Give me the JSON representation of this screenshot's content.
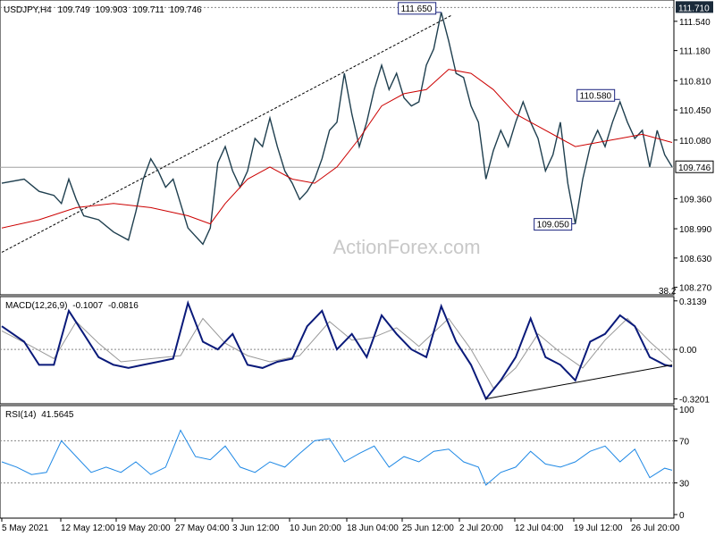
{
  "chart_data": {
    "type": "line",
    "symbol": "USDJPY",
    "timeframe": "H4",
    "ohlc_values": [
      "109.749",
      "109.903",
      "109.711",
      "109.746"
    ],
    "watermark": "ActionForex.com",
    "x_labels": [
      "5 May 2021",
      "12 May 12:00",
      "19 May 20:00",
      "27 May 04:00",
      "3 Jun 12:00",
      "10 Jun 20:00",
      "18 Jun 04:00",
      "25 Jun 12:00",
      "2 Jul 20:00",
      "12 Jul 04:00",
      "19 Jul 12:00",
      "26 Jul 20:00"
    ],
    "price_panel": {
      "ylim": [
        108.2,
        111.78
      ],
      "ticks": [
        "111.540",
        "111.180",
        "110.810",
        "110.450",
        "110.080",
        "109.360",
        "108.990",
        "108.630",
        "108.270"
      ],
      "current_price": 109.746,
      "current_label": "109.746",
      "top_marker": 111.71,
      "top_marker_label": "111.710",
      "small_label": "38.2",
      "price_line": [
        [
          0,
          109.55
        ],
        [
          6,
          109.6
        ],
        [
          10,
          109.45
        ],
        [
          14,
          109.4
        ],
        [
          16,
          109.3
        ],
        [
          18,
          109.6
        ],
        [
          20,
          109.35
        ],
        [
          22,
          109.15
        ],
        [
          26,
          109.1
        ],
        [
          30,
          108.95
        ],
        [
          34,
          108.85
        ],
        [
          36,
          109.2
        ],
        [
          38,
          109.6
        ],
        [
          40,
          109.85
        ],
        [
          42,
          109.7
        ],
        [
          44,
          109.5
        ],
        [
          46,
          109.6
        ],
        [
          48,
          109.3
        ],
        [
          50,
          109.0
        ],
        [
          54,
          108.8
        ],
        [
          56,
          109.0
        ],
        [
          58,
          109.8
        ],
        [
          60,
          110.0
        ],
        [
          62,
          109.7
        ],
        [
          64,
          109.5
        ],
        [
          66,
          109.7
        ],
        [
          68,
          110.1
        ],
        [
          70,
          110.0
        ],
        [
          72,
          110.35
        ],
        [
          74,
          110.0
        ],
        [
          76,
          109.7
        ],
        [
          78,
          109.55
        ],
        [
          80,
          109.35
        ],
        [
          82,
          109.45
        ],
        [
          84,
          109.6
        ],
        [
          86,
          109.85
        ],
        [
          88,
          110.2
        ],
        [
          90,
          110.3
        ],
        [
          92,
          110.9
        ],
        [
          94,
          110.4
        ],
        [
          96,
          110.0
        ],
        [
          98,
          110.3
        ],
        [
          100,
          110.7
        ],
        [
          102,
          111.0
        ],
        [
          104,
          110.7
        ],
        [
          106,
          110.9
        ],
        [
          108,
          110.6
        ],
        [
          110,
          110.5
        ],
        [
          112,
          110.55
        ],
        [
          114,
          111.0
        ],
        [
          116,
          111.2
        ],
        [
          118,
          111.65
        ],
        [
          120,
          111.3
        ],
        [
          122,
          110.9
        ],
        [
          124,
          110.85
        ],
        [
          126,
          110.5
        ],
        [
          128,
          110.3
        ],
        [
          130,
          109.6
        ],
        [
          132,
          109.95
        ],
        [
          134,
          110.2
        ],
        [
          136,
          110.0
        ],
        [
          138,
          110.3
        ],
        [
          140,
          110.55
        ],
        [
          142,
          110.3
        ],
        [
          144,
          110.1
        ],
        [
          146,
          109.7
        ],
        [
          148,
          109.9
        ],
        [
          150,
          110.3
        ],
        [
          152,
          109.55
        ],
        [
          154,
          109.05
        ],
        [
          156,
          109.6
        ],
        [
          158,
          110.0
        ],
        [
          160,
          110.2
        ],
        [
          162,
          110.0
        ],
        [
          164,
          110.3
        ],
        [
          166,
          110.55
        ],
        [
          168,
          110.3
        ],
        [
          170,
          110.1
        ],
        [
          172,
          110.2
        ],
        [
          174,
          109.75
        ],
        [
          176,
          110.2
        ],
        [
          178,
          109.9
        ],
        [
          180,
          109.75
        ]
      ],
      "ma_line": [
        [
          0,
          109.0
        ],
        [
          10,
          109.1
        ],
        [
          20,
          109.25
        ],
        [
          30,
          109.3
        ],
        [
          40,
          109.25
        ],
        [
          50,
          109.15
        ],
        [
          56,
          109.05
        ],
        [
          60,
          109.3
        ],
        [
          66,
          109.6
        ],
        [
          72,
          109.75
        ],
        [
          78,
          109.6
        ],
        [
          84,
          109.55
        ],
        [
          90,
          109.75
        ],
        [
          96,
          110.1
        ],
        [
          102,
          110.5
        ],
        [
          108,
          110.65
        ],
        [
          114,
          110.7
        ],
        [
          120,
          110.95
        ],
        [
          126,
          110.9
        ],
        [
          132,
          110.7
        ],
        [
          138,
          110.4
        ],
        [
          144,
          110.25
        ],
        [
          150,
          110.1
        ],
        [
          154,
          110.0
        ],
        [
          160,
          110.05
        ],
        [
          166,
          110.1
        ],
        [
          172,
          110.15
        ],
        [
          180,
          110.05
        ]
      ],
      "trendline": [
        [
          0,
          108.7
        ],
        [
          121,
          111.62
        ]
      ],
      "annotations": [
        {
          "text": "111.650",
          "x": 118,
          "y": 111.65
        },
        {
          "text": "110.580",
          "x": 166,
          "y": 110.58
        },
        {
          "text": "109.050",
          "x": 154,
          "y": 109.05
        }
      ]
    },
    "macd_panel": {
      "label": "MACD(12,26,9)",
      "values": [
        "-0.1007",
        "-0.0816"
      ],
      "ylim": [
        -0.34,
        0.33
      ],
      "ticks": [
        "0.3139",
        "0.00",
        "-0.3201"
      ],
      "tick_values": [
        0.3139,
        0.0,
        -0.3201
      ],
      "macd": [
        [
          0,
          0.15
        ],
        [
          6,
          0.05
        ],
        [
          10,
          -0.1
        ],
        [
          14,
          -0.1
        ],
        [
          18,
          0.25
        ],
        [
          22,
          0.1
        ],
        [
          26,
          -0.05
        ],
        [
          30,
          -0.1
        ],
        [
          34,
          -0.12
        ],
        [
          38,
          -0.1
        ],
        [
          42,
          -0.08
        ],
        [
          46,
          -0.06
        ],
        [
          50,
          0.3
        ],
        [
          54,
          0.05
        ],
        [
          58,
          0.0
        ],
        [
          62,
          0.1
        ],
        [
          66,
          -0.1
        ],
        [
          70,
          -0.12
        ],
        [
          74,
          -0.08
        ],
        [
          78,
          -0.06
        ],
        [
          82,
          0.15
        ],
        [
          86,
          0.25
        ],
        [
          90,
          0.0
        ],
        [
          94,
          0.1
        ],
        [
          98,
          -0.05
        ],
        [
          102,
          0.22
        ],
        [
          106,
          0.1
        ],
        [
          110,
          0.0
        ],
        [
          114,
          -0.05
        ],
        [
          118,
          0.28
        ],
        [
          122,
          0.05
        ],
        [
          126,
          -0.1
        ],
        [
          130,
          -0.32
        ],
        [
          134,
          -0.2
        ],
        [
          138,
          -0.05
        ],
        [
          142,
          0.2
        ],
        [
          146,
          -0.05
        ],
        [
          150,
          -0.1
        ],
        [
          154,
          -0.2
        ],
        [
          158,
          0.05
        ],
        [
          162,
          0.1
        ],
        [
          166,
          0.22
        ],
        [
          170,
          0.15
        ],
        [
          174,
          -0.05
        ],
        [
          178,
          -0.1
        ],
        [
          180,
          -0.11
        ]
      ],
      "signal": [
        [
          0,
          0.12
        ],
        [
          8,
          0.02
        ],
        [
          14,
          -0.06
        ],
        [
          20,
          0.18
        ],
        [
          26,
          0.04
        ],
        [
          32,
          -0.08
        ],
        [
          40,
          -0.06
        ],
        [
          48,
          -0.04
        ],
        [
          54,
          0.2
        ],
        [
          60,
          0.04
        ],
        [
          66,
          -0.04
        ],
        [
          72,
          -0.08
        ],
        [
          80,
          -0.04
        ],
        [
          88,
          0.18
        ],
        [
          94,
          0.06
        ],
        [
          100,
          0.08
        ],
        [
          106,
          0.14
        ],
        [
          112,
          0.02
        ],
        [
          120,
          0.2
        ],
        [
          126,
          0.0
        ],
        [
          132,
          -0.25
        ],
        [
          138,
          -0.12
        ],
        [
          144,
          0.1
        ],
        [
          150,
          -0.02
        ],
        [
          156,
          -0.12
        ],
        [
          162,
          0.06
        ],
        [
          168,
          0.2
        ],
        [
          174,
          0.05
        ],
        [
          180,
          -0.08
        ]
      ],
      "support_line": [
        [
          130,
          -0.32
        ],
        [
          180,
          -0.1
        ]
      ]
    },
    "rsi_panel": {
      "label": "RSI(14)",
      "value": "41.5645",
      "ylim": [
        0,
        100
      ],
      "ticks": [
        "100",
        "70",
        "30",
        "0"
      ],
      "tick_values": [
        100,
        70,
        30,
        0
      ],
      "rsi": [
        [
          0,
          50
        ],
        [
          4,
          45
        ],
        [
          8,
          38
        ],
        [
          12,
          40
        ],
        [
          16,
          70
        ],
        [
          20,
          55
        ],
        [
          24,
          40
        ],
        [
          28,
          45
        ],
        [
          32,
          40
        ],
        [
          36,
          50
        ],
        [
          40,
          38
        ],
        [
          44,
          45
        ],
        [
          48,
          80
        ],
        [
          52,
          55
        ],
        [
          56,
          52
        ],
        [
          60,
          65
        ],
        [
          64,
          45
        ],
        [
          68,
          40
        ],
        [
          72,
          50
        ],
        [
          76,
          45
        ],
        [
          80,
          58
        ],
        [
          84,
          70
        ],
        [
          88,
          72
        ],
        [
          92,
          50
        ],
        [
          96,
          58
        ],
        [
          100,
          65
        ],
        [
          104,
          45
        ],
        [
          108,
          55
        ],
        [
          112,
          50
        ],
        [
          116,
          60
        ],
        [
          120,
          62
        ],
        [
          124,
          50
        ],
        [
          128,
          45
        ],
        [
          130,
          28
        ],
        [
          134,
          40
        ],
        [
          138,
          45
        ],
        [
          142,
          60
        ],
        [
          146,
          48
        ],
        [
          150,
          45
        ],
        [
          154,
          50
        ],
        [
          158,
          60
        ],
        [
          162,
          65
        ],
        [
          166,
          50
        ],
        [
          170,
          62
        ],
        [
          174,
          35
        ],
        [
          178,
          44
        ],
        [
          180,
          42
        ]
      ]
    }
  }
}
